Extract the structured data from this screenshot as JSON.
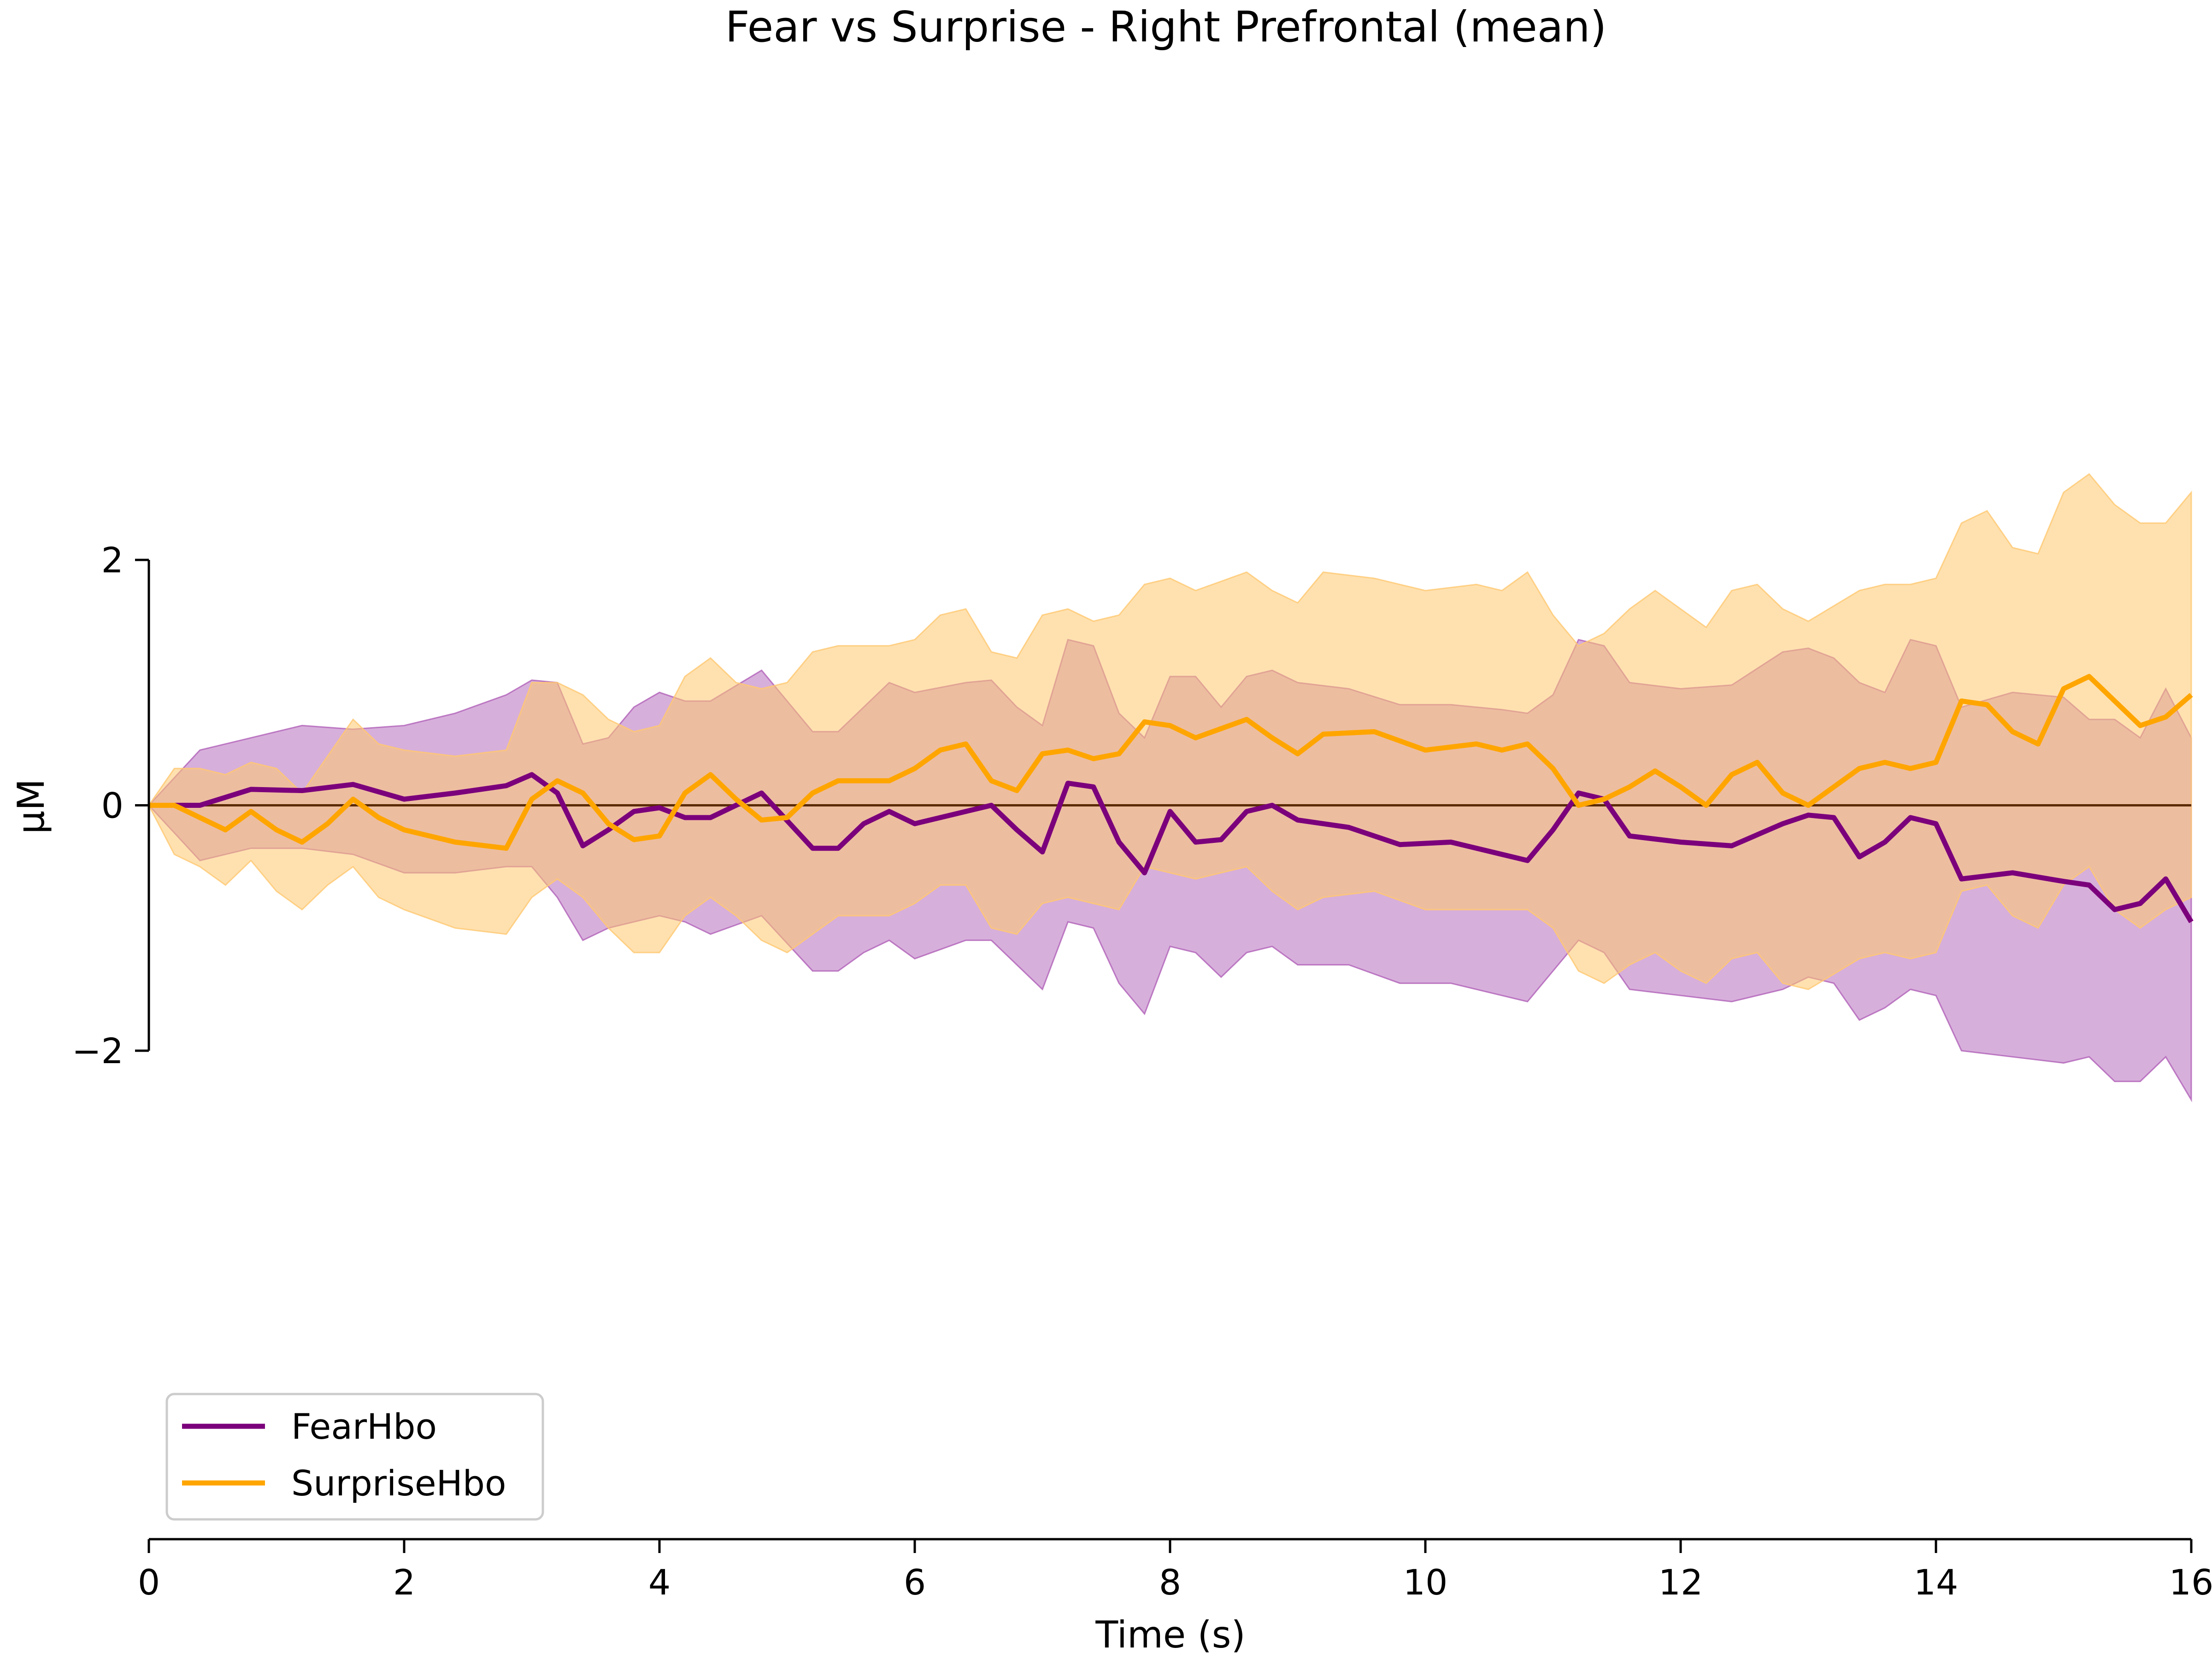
{
  "chart_data": {
    "type": "line",
    "title": "Fear vs Surprise - Right Prefrontal (mean)",
    "xlabel": "Time (s)",
    "ylabel": "µM",
    "xlim": [
      0,
      16
    ],
    "ylim": [
      -2,
      2
    ],
    "x_ticks": [
      "0",
      "2",
      "4",
      "6",
      "8",
      "10",
      "12",
      "14",
      "16"
    ],
    "y_ticks": [
      "−2",
      "0",
      "2"
    ],
    "zero_line": true,
    "grid": false,
    "legend_position": "lower-left",
    "series": [
      {
        "name": "FearHbo",
        "color": "#7b007b",
        "band_color": "#b060b8",
        "x": [
          0,
          0.4,
          0.8,
          1.2,
          1.6,
          2.0,
          2.4,
          2.8,
          3.0,
          3.2,
          3.4,
          3.6,
          3.8,
          4.0,
          4.2,
          4.4,
          4.8,
          5.2,
          5.4,
          5.6,
          5.8,
          6.0,
          6.4,
          6.6,
          6.8,
          7.0,
          7.2,
          7.4,
          7.6,
          7.8,
          8.0,
          8.2,
          8.4,
          8.6,
          8.8,
          9.0,
          9.4,
          9.8,
          10.2,
          10.6,
          10.8,
          11.0,
          11.2,
          11.4,
          11.6,
          12.0,
          12.4,
          12.8,
          13.0,
          13.2,
          13.4,
          13.6,
          13.8,
          14.0,
          14.2,
          14.6,
          15.0,
          15.2,
          15.4,
          15.6,
          15.8,
          16.0
        ],
        "values": [
          0,
          0.0,
          0.13,
          0.12,
          0.17,
          0.05,
          0.1,
          0.16,
          0.25,
          0.1,
          -0.33,
          -0.2,
          -0.05,
          -0.02,
          -0.1,
          -0.1,
          0.1,
          -0.35,
          -0.35,
          -0.15,
          -0.05,
          -0.15,
          -0.05,
          0.0,
          -0.2,
          -0.38,
          0.18,
          0.15,
          -0.3,
          -0.55,
          -0.05,
          -0.3,
          -0.28,
          -0.05,
          0.0,
          -0.12,
          -0.18,
          -0.32,
          -0.3,
          -0.4,
          -0.45,
          -0.2,
          0.1,
          0.05,
          -0.25,
          -0.3,
          -0.33,
          -0.15,
          -0.08,
          -0.1,
          -0.42,
          -0.3,
          -0.1,
          -0.15,
          -0.6,
          -0.55,
          -0.62,
          -0.65,
          -0.85,
          -0.8,
          -0.6,
          -0.95
        ],
        "upper": [
          0,
          0.45,
          0.55,
          0.65,
          0.62,
          0.65,
          0.75,
          0.9,
          1.02,
          1.0,
          0.5,
          0.55,
          0.8,
          0.92,
          0.85,
          0.85,
          1.1,
          0.6,
          0.6,
          0.8,
          1.0,
          0.92,
          1.0,
          1.02,
          0.8,
          0.65,
          1.35,
          1.3,
          0.75,
          0.55,
          1.05,
          1.05,
          0.8,
          1.05,
          1.1,
          1.0,
          0.95,
          0.82,
          0.82,
          0.78,
          0.75,
          0.9,
          1.35,
          1.3,
          1.0,
          0.95,
          0.98,
          1.25,
          1.28,
          1.2,
          1.0,
          0.92,
          1.35,
          1.3,
          0.8,
          0.92,
          0.88,
          0.7,
          0.7,
          0.55,
          0.95,
          0.55
        ],
        "lower": [
          0,
          -0.45,
          -0.35,
          -0.35,
          -0.4,
          -0.55,
          -0.55,
          -0.5,
          -0.5,
          -0.75,
          -1.1,
          -1.0,
          -0.95,
          -0.9,
          -0.95,
          -1.05,
          -0.9,
          -1.35,
          -1.35,
          -1.2,
          -1.1,
          -1.25,
          -1.1,
          -1.1,
          -1.3,
          -1.5,
          -0.95,
          -1.0,
          -1.45,
          -1.7,
          -1.15,
          -1.2,
          -1.4,
          -1.2,
          -1.15,
          -1.3,
          -1.3,
          -1.45,
          -1.45,
          -1.55,
          -1.6,
          -1.35,
          -1.1,
          -1.2,
          -1.5,
          -1.55,
          -1.6,
          -1.5,
          -1.4,
          -1.45,
          -1.75,
          -1.65,
          -1.5,
          -1.55,
          -2.0,
          -2.05,
          -2.1,
          -2.05,
          -2.25,
          -2.25,
          -2.05,
          -2.4
        ]
      },
      {
        "name": "SurpriseHbo",
        "color": "#ffa500",
        "band_color": "#ffc870",
        "x": [
          0,
          0.2,
          0.4,
          0.6,
          0.8,
          1.0,
          1.2,
          1.4,
          1.6,
          1.8,
          2.0,
          2.4,
          2.8,
          3.0,
          3.2,
          3.4,
          3.6,
          3.8,
          4.0,
          4.2,
          4.4,
          4.6,
          4.8,
          5.0,
          5.2,
          5.4,
          5.8,
          6.0,
          6.2,
          6.4,
          6.6,
          6.8,
          7.0,
          7.2,
          7.4,
          7.6,
          7.8,
          8.0,
          8.2,
          8.6,
          8.8,
          9.0,
          9.2,
          9.6,
          10.0,
          10.4,
          10.6,
          10.8,
          11.0,
          11.2,
          11.4,
          11.6,
          11.8,
          12.0,
          12.2,
          12.4,
          12.6,
          12.8,
          13.0,
          13.4,
          13.6,
          13.8,
          14.0,
          14.2,
          14.4,
          14.6,
          14.8,
          15.0,
          15.2,
          15.4,
          15.6,
          15.8,
          16.0
        ],
        "values": [
          0,
          0.0,
          -0.1,
          -0.2,
          -0.05,
          -0.2,
          -0.3,
          -0.15,
          0.05,
          -0.1,
          -0.2,
          -0.3,
          -0.35,
          0.05,
          0.2,
          0.1,
          -0.15,
          -0.28,
          -0.25,
          0.1,
          0.25,
          0.05,
          -0.12,
          -0.1,
          0.1,
          0.2,
          0.2,
          0.3,
          0.45,
          0.5,
          0.2,
          0.12,
          0.42,
          0.45,
          0.38,
          0.42,
          0.68,
          0.65,
          0.55,
          0.7,
          0.55,
          0.42,
          0.58,
          0.6,
          0.45,
          0.5,
          0.45,
          0.5,
          0.3,
          0.0,
          0.05,
          0.15,
          0.28,
          0.15,
          0.0,
          0.25,
          0.35,
          0.1,
          0.0,
          0.3,
          0.35,
          0.3,
          0.35,
          0.85,
          0.82,
          0.6,
          0.5,
          0.95,
          1.05,
          0.85,
          0.65,
          0.72,
          0.9
        ],
        "upper": [
          0,
          0.3,
          0.3,
          0.25,
          0.35,
          0.3,
          0.1,
          0.4,
          0.7,
          0.5,
          0.45,
          0.4,
          0.45,
          1.0,
          1.0,
          0.9,
          0.7,
          0.6,
          0.65,
          1.05,
          1.2,
          1.0,
          0.95,
          1.0,
          1.25,
          1.3,
          1.3,
          1.35,
          1.55,
          1.6,
          1.25,
          1.2,
          1.55,
          1.6,
          1.5,
          1.55,
          1.8,
          1.85,
          1.75,
          1.9,
          1.75,
          1.65,
          1.9,
          1.85,
          1.75,
          1.8,
          1.75,
          1.9,
          1.55,
          1.3,
          1.4,
          1.6,
          1.75,
          1.6,
          1.45,
          1.75,
          1.8,
          1.6,
          1.5,
          1.75,
          1.8,
          1.8,
          1.85,
          2.3,
          2.4,
          2.1,
          2.05,
          2.55,
          2.7,
          2.45,
          2.3,
          2.3,
          2.55
        ],
        "lower": [
          0,
          -0.4,
          -0.5,
          -0.65,
          -0.45,
          -0.7,
          -0.85,
          -0.65,
          -0.5,
          -0.75,
          -0.85,
          -1.0,
          -1.05,
          -0.75,
          -0.6,
          -0.75,
          -1.0,
          -1.2,
          -1.2,
          -0.9,
          -0.75,
          -0.9,
          -1.1,
          -1.2,
          -1.05,
          -0.9,
          -0.9,
          -0.8,
          -0.65,
          -0.65,
          -1.0,
          -1.05,
          -0.8,
          -0.75,
          -0.8,
          -0.85,
          -0.5,
          -0.55,
          -0.6,
          -0.5,
          -0.7,
          -0.85,
          -0.75,
          -0.7,
          -0.85,
          -0.85,
          -0.85,
          -0.85,
          -1.0,
          -1.35,
          -1.45,
          -1.3,
          -1.2,
          -1.35,
          -1.45,
          -1.25,
          -1.2,
          -1.45,
          -1.5,
          -1.25,
          -1.2,
          -1.25,
          -1.2,
          -0.7,
          -0.65,
          -0.9,
          -1.0,
          -0.65,
          -0.5,
          -0.85,
          -1.0,
          -0.85,
          -0.75
        ]
      }
    ]
  }
}
